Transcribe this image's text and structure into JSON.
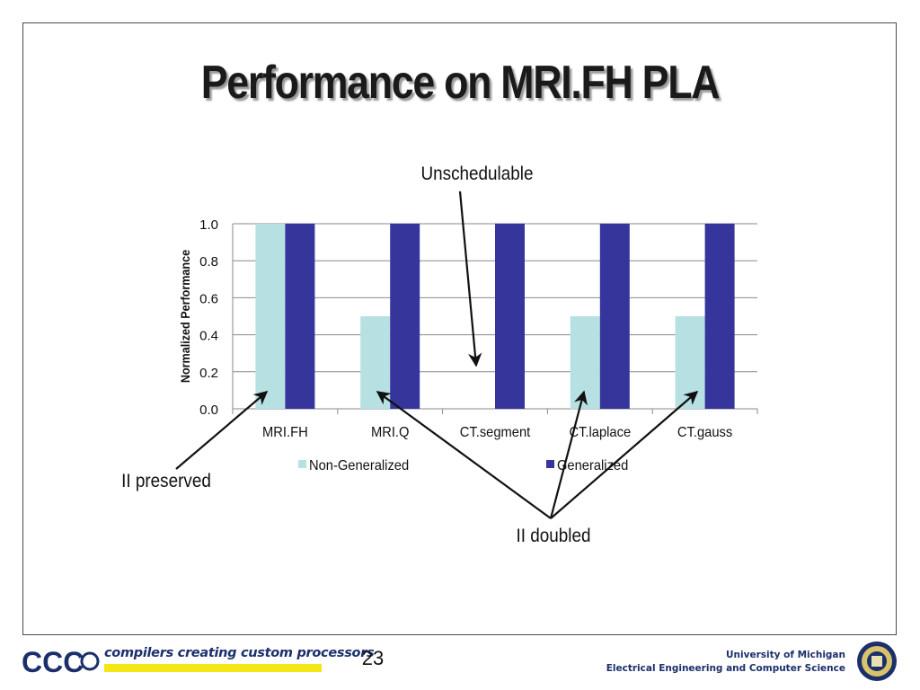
{
  "slide": {
    "title": "Performance on MRI.FH PLA",
    "page_number": "23"
  },
  "annotations": {
    "unschedulable": "Unschedulable",
    "ii_preserved": "II preserved",
    "ii_doubled": "II doubled"
  },
  "footer": {
    "logo_text": "CCC",
    "tagline": "compilers creating custom processors",
    "university": "University of Michigan",
    "department": "Electrical Engineering and Computer Science"
  },
  "colors": {
    "non_generalized": "#b7e0e3",
    "generalized": "#35359b",
    "footer_blue": "#1b2f6b",
    "tag_yellow": "#f5e616"
  },
  "chart_data": {
    "type": "bar",
    "categories": [
      "MRI.FH",
      "MRI.Q",
      "CT.segment",
      "CT.laplace",
      "CT.gauss"
    ],
    "series": [
      {
        "name": "Non-Generalized",
        "values": [
          1.0,
          0.5,
          0.0,
          0.5,
          0.5
        ]
      },
      {
        "name": "Generalized",
        "values": [
          1.0,
          1.0,
          1.0,
          1.0,
          1.0
        ]
      }
    ],
    "ylabel": "Normalized Performance",
    "xlabel": "",
    "ylim": [
      0,
      1.0
    ],
    "yticks": [
      "0.0",
      "0.2",
      "0.4",
      "0.6",
      "0.8",
      "1.0"
    ],
    "grid": true,
    "legend": "bottom"
  }
}
